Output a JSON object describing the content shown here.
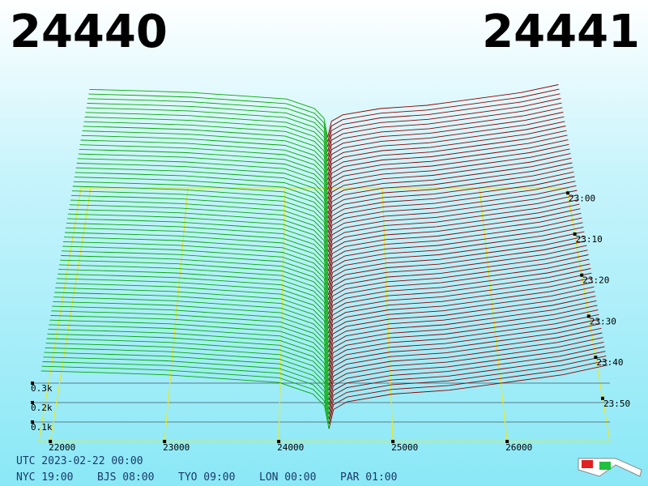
{
  "chart_data": {
    "type": "depth3d",
    "bid_price": "24440",
    "ask_price": "24441",
    "bid_color": "#00b000",
    "ask_color": "#c00000",
    "bids": {
      "prices": [
        24440,
        24400,
        24300,
        24000,
        23500,
        23000,
        22500,
        21900
      ],
      "depth": [
        0,
        0.12,
        0.18,
        0.24,
        0.26,
        0.28,
        0.29,
        0.3
      ],
      "color": "#00a800"
    },
    "asks": {
      "prices": [
        24441,
        24480,
        24600,
        25000,
        25500,
        26000,
        26500,
        26900
      ],
      "depth": [
        0,
        0.1,
        0.14,
        0.18,
        0.2,
        0.24,
        0.28,
        0.33
      ],
      "color": "#8b0000"
    },
    "xlim": [
      21900,
      26900
    ],
    "xticks": [
      22000,
      23000,
      24000,
      25000,
      26000
    ],
    "zticks": [
      {
        "value": 0.1,
        "label": "0.1k"
      },
      {
        "value": 0.2,
        "label": "0.2k"
      },
      {
        "value": 0.3,
        "label": "0.3k"
      }
    ],
    "time_ticks": [
      "23:00",
      "23:10",
      "23:20",
      "23:30",
      "23:40",
      "23:50"
    ],
    "utc": "UTC 2023-02-22 00:00",
    "cities": [
      "NYC 19:00",
      "BJS 08:00",
      "TYO 09:00",
      "LON 00:00",
      "PAR 01:00"
    ]
  }
}
